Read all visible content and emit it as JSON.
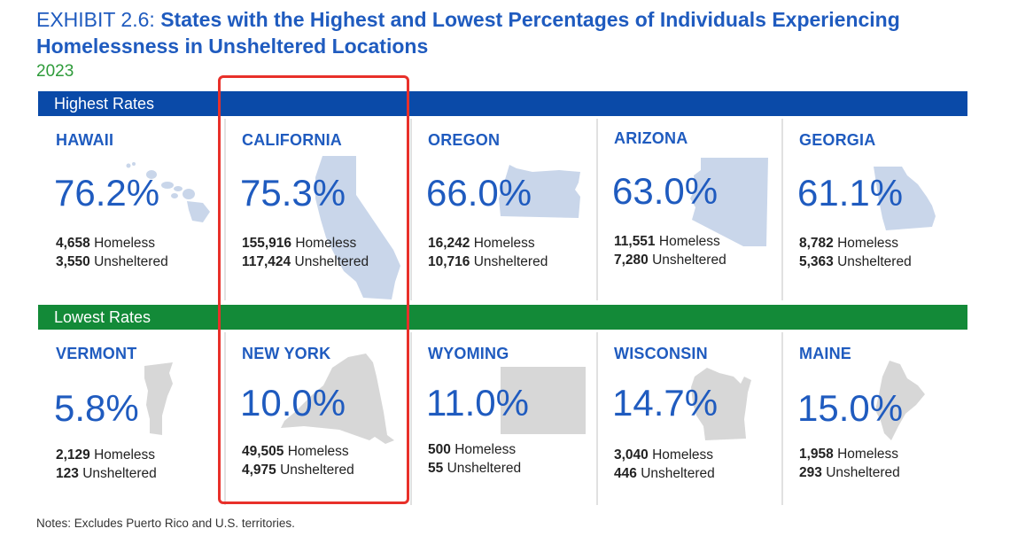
{
  "title": {
    "exhibit": "EXHIBIT 2.6:",
    "text_line1": "States with the Highest and Lowest Percentages of Individuals Experiencing",
    "text_line2": "Homelessness in Unsheltered Locations",
    "subtitle": "2023"
  },
  "bands": {
    "highest": "Highest Rates",
    "lowest": "Lowest Rates"
  },
  "labels": {
    "homeless": "Homeless",
    "unsheltered": "Unsheltered"
  },
  "colors": {
    "title_blue": "#1f5bbf",
    "subtitle_green": "#2e9b3a",
    "highest_band": "#0a4aa8",
    "lowest_band": "#138a38",
    "highest_shape": "#c9d6ea",
    "lowest_shape": "#d7d7d7",
    "highlight_border": "#e8302a"
  },
  "notes": "Notes: Excludes Puerto Rico and U.S. territories.",
  "chart_data": {
    "type": "table",
    "unit": "%",
    "groups": [
      {
        "name": "Highest Rates",
        "states": [
          {
            "state": "HAWAII",
            "percent": "76.2%",
            "homeless": "4,658",
            "unsheltered": "3,550"
          },
          {
            "state": "CALIFORNIA",
            "percent": "75.3%",
            "homeless": "155,916",
            "unsheltered": "117,424"
          },
          {
            "state": "OREGON",
            "percent": "66.0%",
            "homeless": "16,242",
            "unsheltered": "10,716"
          },
          {
            "state": "ARIZONA",
            "percent": "63.0%",
            "homeless": "11,551",
            "unsheltered": "7,280"
          },
          {
            "state": "GEORGIA",
            "percent": "61.1%",
            "homeless": "8,782",
            "unsheltered": "5,363"
          }
        ]
      },
      {
        "name": "Lowest Rates",
        "states": [
          {
            "state": "VERMONT",
            "percent": "5.8%",
            "homeless": "2,129",
            "unsheltered": "123"
          },
          {
            "state": "NEW YORK",
            "percent": "10.0%",
            "homeless": "49,505",
            "unsheltered": "4,975"
          },
          {
            "state": "WYOMING",
            "percent": "11.0%",
            "homeless": "500",
            "unsheltered": "55"
          },
          {
            "state": "WISCONSIN",
            "percent": "14.7%",
            "homeless": "3,040",
            "unsheltered": "446"
          },
          {
            "state": "MAINE",
            "percent": "15.0%",
            "homeless": "1,958",
            "unsheltered": "293"
          }
        ]
      }
    ],
    "highlighted_column": "CALIFORNIA / NEW YORK"
  }
}
